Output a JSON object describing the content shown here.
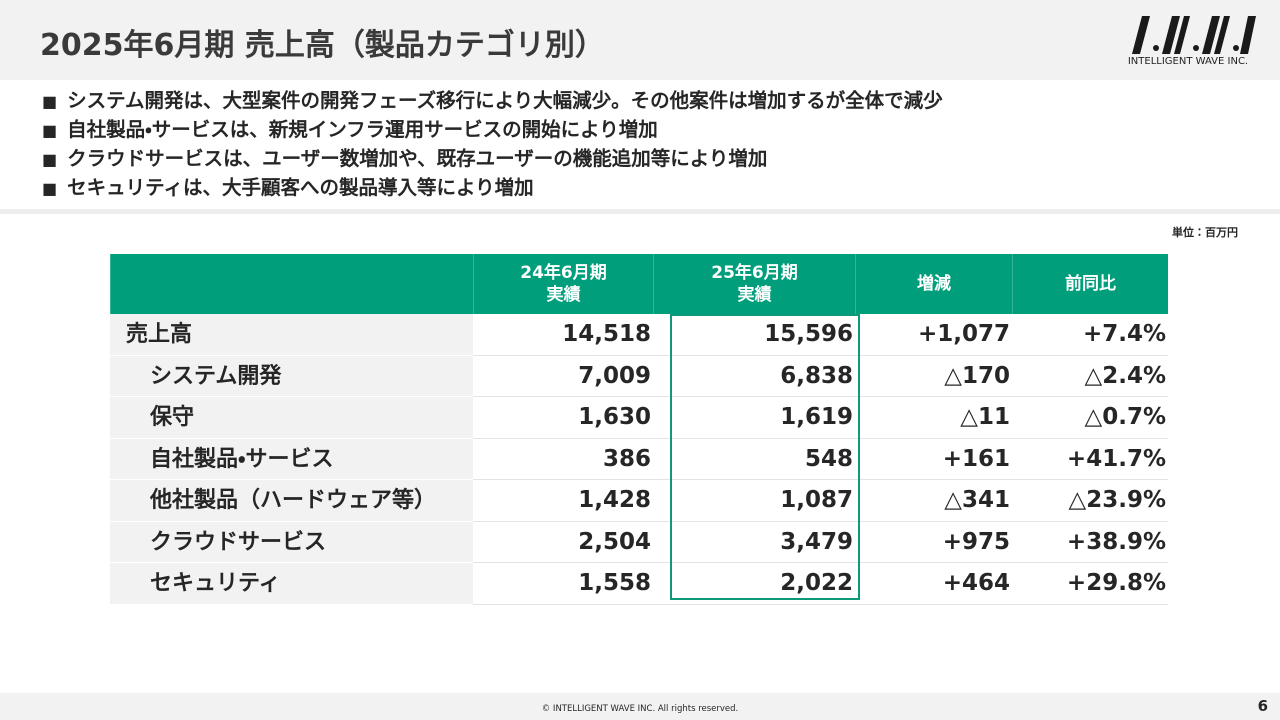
{
  "header": {
    "title": "2025年6月期 売上高（製品カテゴリ別）",
    "logo_text": "INTELLIGENT WAVE INC."
  },
  "bullets": [
    "システム開発は、大型案件の開発フェーズ移行により大幅減少。その他案件は増加するが全体で減少",
    "自社製品・サービスは、新規インフラ運用サービスの開始により増加",
    "クラウドサービスは、ユーザー数増加や、既存ユーザーの機能追加等により増加",
    "セキュリティは、大手顧客への製品導入等により増加"
  ],
  "unit": "単位：百万円",
  "table": {
    "columns": [
      "24年6月期\n実績",
      "25年6月期\n実績",
      "増減",
      "前同比"
    ],
    "rows": [
      [
        "売上高",
        "14,518",
        "15,596",
        "+1,077",
        "+7.4%"
      ],
      [
        "システム開発",
        "7,009",
        "6,838",
        "△170",
        "△2.4%"
      ],
      [
        "保守",
        "1,630",
        "1,619",
        "△11",
        "△0.7%"
      ],
      [
        "自社製品・サービス",
        "386",
        "548",
        "+161",
        "+41.7%"
      ],
      [
        "他社製品（ハードウェア等）",
        "1,428",
        "1,087",
        "△341",
        "△23.9%"
      ],
      [
        "クラウドサービス",
        "2,504",
        "3,479",
        "+975",
        "+38.9%"
      ],
      [
        "セキュリティ",
        "1,558",
        "2,022",
        "+464",
        "+29.8%"
      ]
    ]
  },
  "footer": {
    "copyright": "© INTELLIGENT WAVE INC. All rights reserved.",
    "page": "6"
  }
}
